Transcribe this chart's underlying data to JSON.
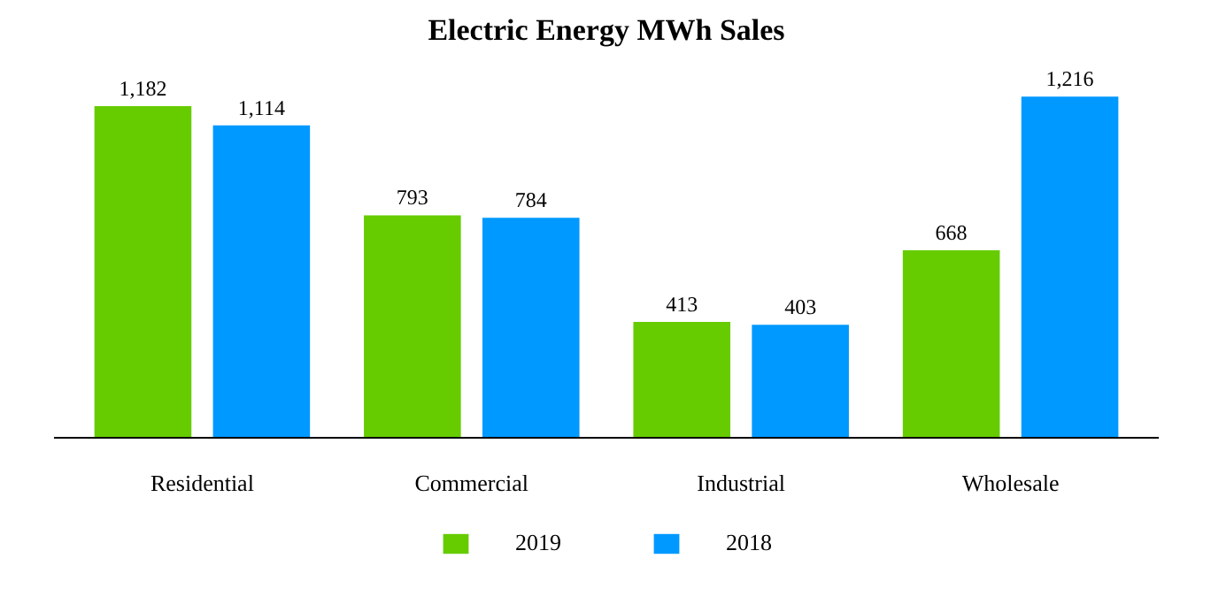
{
  "chart_data": {
    "type": "bar",
    "title": "Electric Energy MWh Sales",
    "categories": [
      "Residential",
      "Commercial",
      "Industrial",
      "Wholesale"
    ],
    "series": [
      {
        "name": "2019",
        "color": "#66cc00",
        "values": [
          1182,
          793,
          413,
          668
        ],
        "value_labels": [
          "1,182",
          "793",
          "413",
          "668"
        ]
      },
      {
        "name": "2018",
        "color": "#0099ff",
        "values": [
          1114,
          784,
          403,
          1216
        ],
        "value_labels": [
          "1,114",
          "784",
          "403",
          "1,216"
        ]
      }
    ],
    "legend": "bottom"
  }
}
